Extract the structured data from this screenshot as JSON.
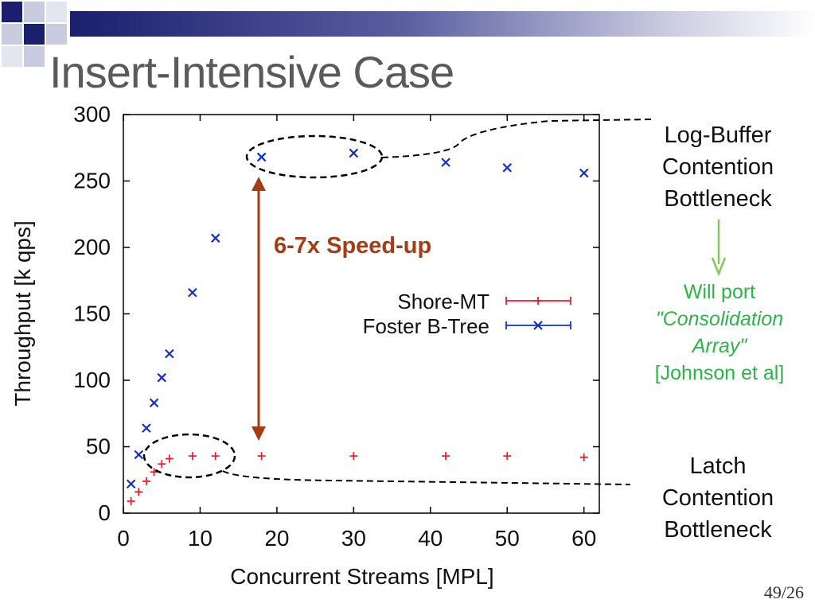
{
  "slide": {
    "title": "Insert-Intensive Case",
    "page_number": "49/26"
  },
  "annotations": {
    "log_buffer": [
      "Log-Buffer",
      "Contention",
      "Bottleneck"
    ],
    "latch": [
      "Latch",
      "Contention",
      "Bottleneck"
    ],
    "will_port": [
      "Will port",
      "\"Consolidation",
      "Array\"",
      "[Johnson et al]"
    ],
    "speedup": "6-7x Speed-up"
  },
  "colors": {
    "shore": "#e8202a",
    "foster": "#1530c8",
    "speedup": "#a63c14",
    "green": "#2db34a",
    "axis": "#000000"
  },
  "chart_data": {
    "type": "scatter",
    "title": "",
    "xlabel": "Concurrent Streams [MPL]",
    "ylabel": "Throughput [k qps]",
    "xlim": [
      0,
      62
    ],
    "ylim": [
      0,
      300
    ],
    "xticks": [
      0,
      10,
      20,
      30,
      40,
      50,
      60
    ],
    "yticks": [
      0,
      50,
      100,
      150,
      200,
      250,
      300
    ],
    "legend_position": "center-right",
    "series": [
      {
        "name": "Shore-MT",
        "marker": "plus",
        "x": [
          1,
          2,
          3,
          4,
          5,
          6,
          9,
          12,
          18,
          30,
          42,
          50,
          60
        ],
        "y": [
          9,
          16,
          24,
          31,
          37,
          41,
          43,
          43,
          43,
          43,
          43,
          43,
          42
        ]
      },
      {
        "name": "Foster B-Tree",
        "marker": "x",
        "x": [
          1,
          2,
          3,
          4,
          5,
          6,
          9,
          12,
          18,
          30,
          42,
          50,
          60
        ],
        "y": [
          22,
          44,
          64,
          83,
          102,
          120,
          166,
          207,
          268,
          271,
          264,
          260,
          256
        ]
      }
    ]
  }
}
